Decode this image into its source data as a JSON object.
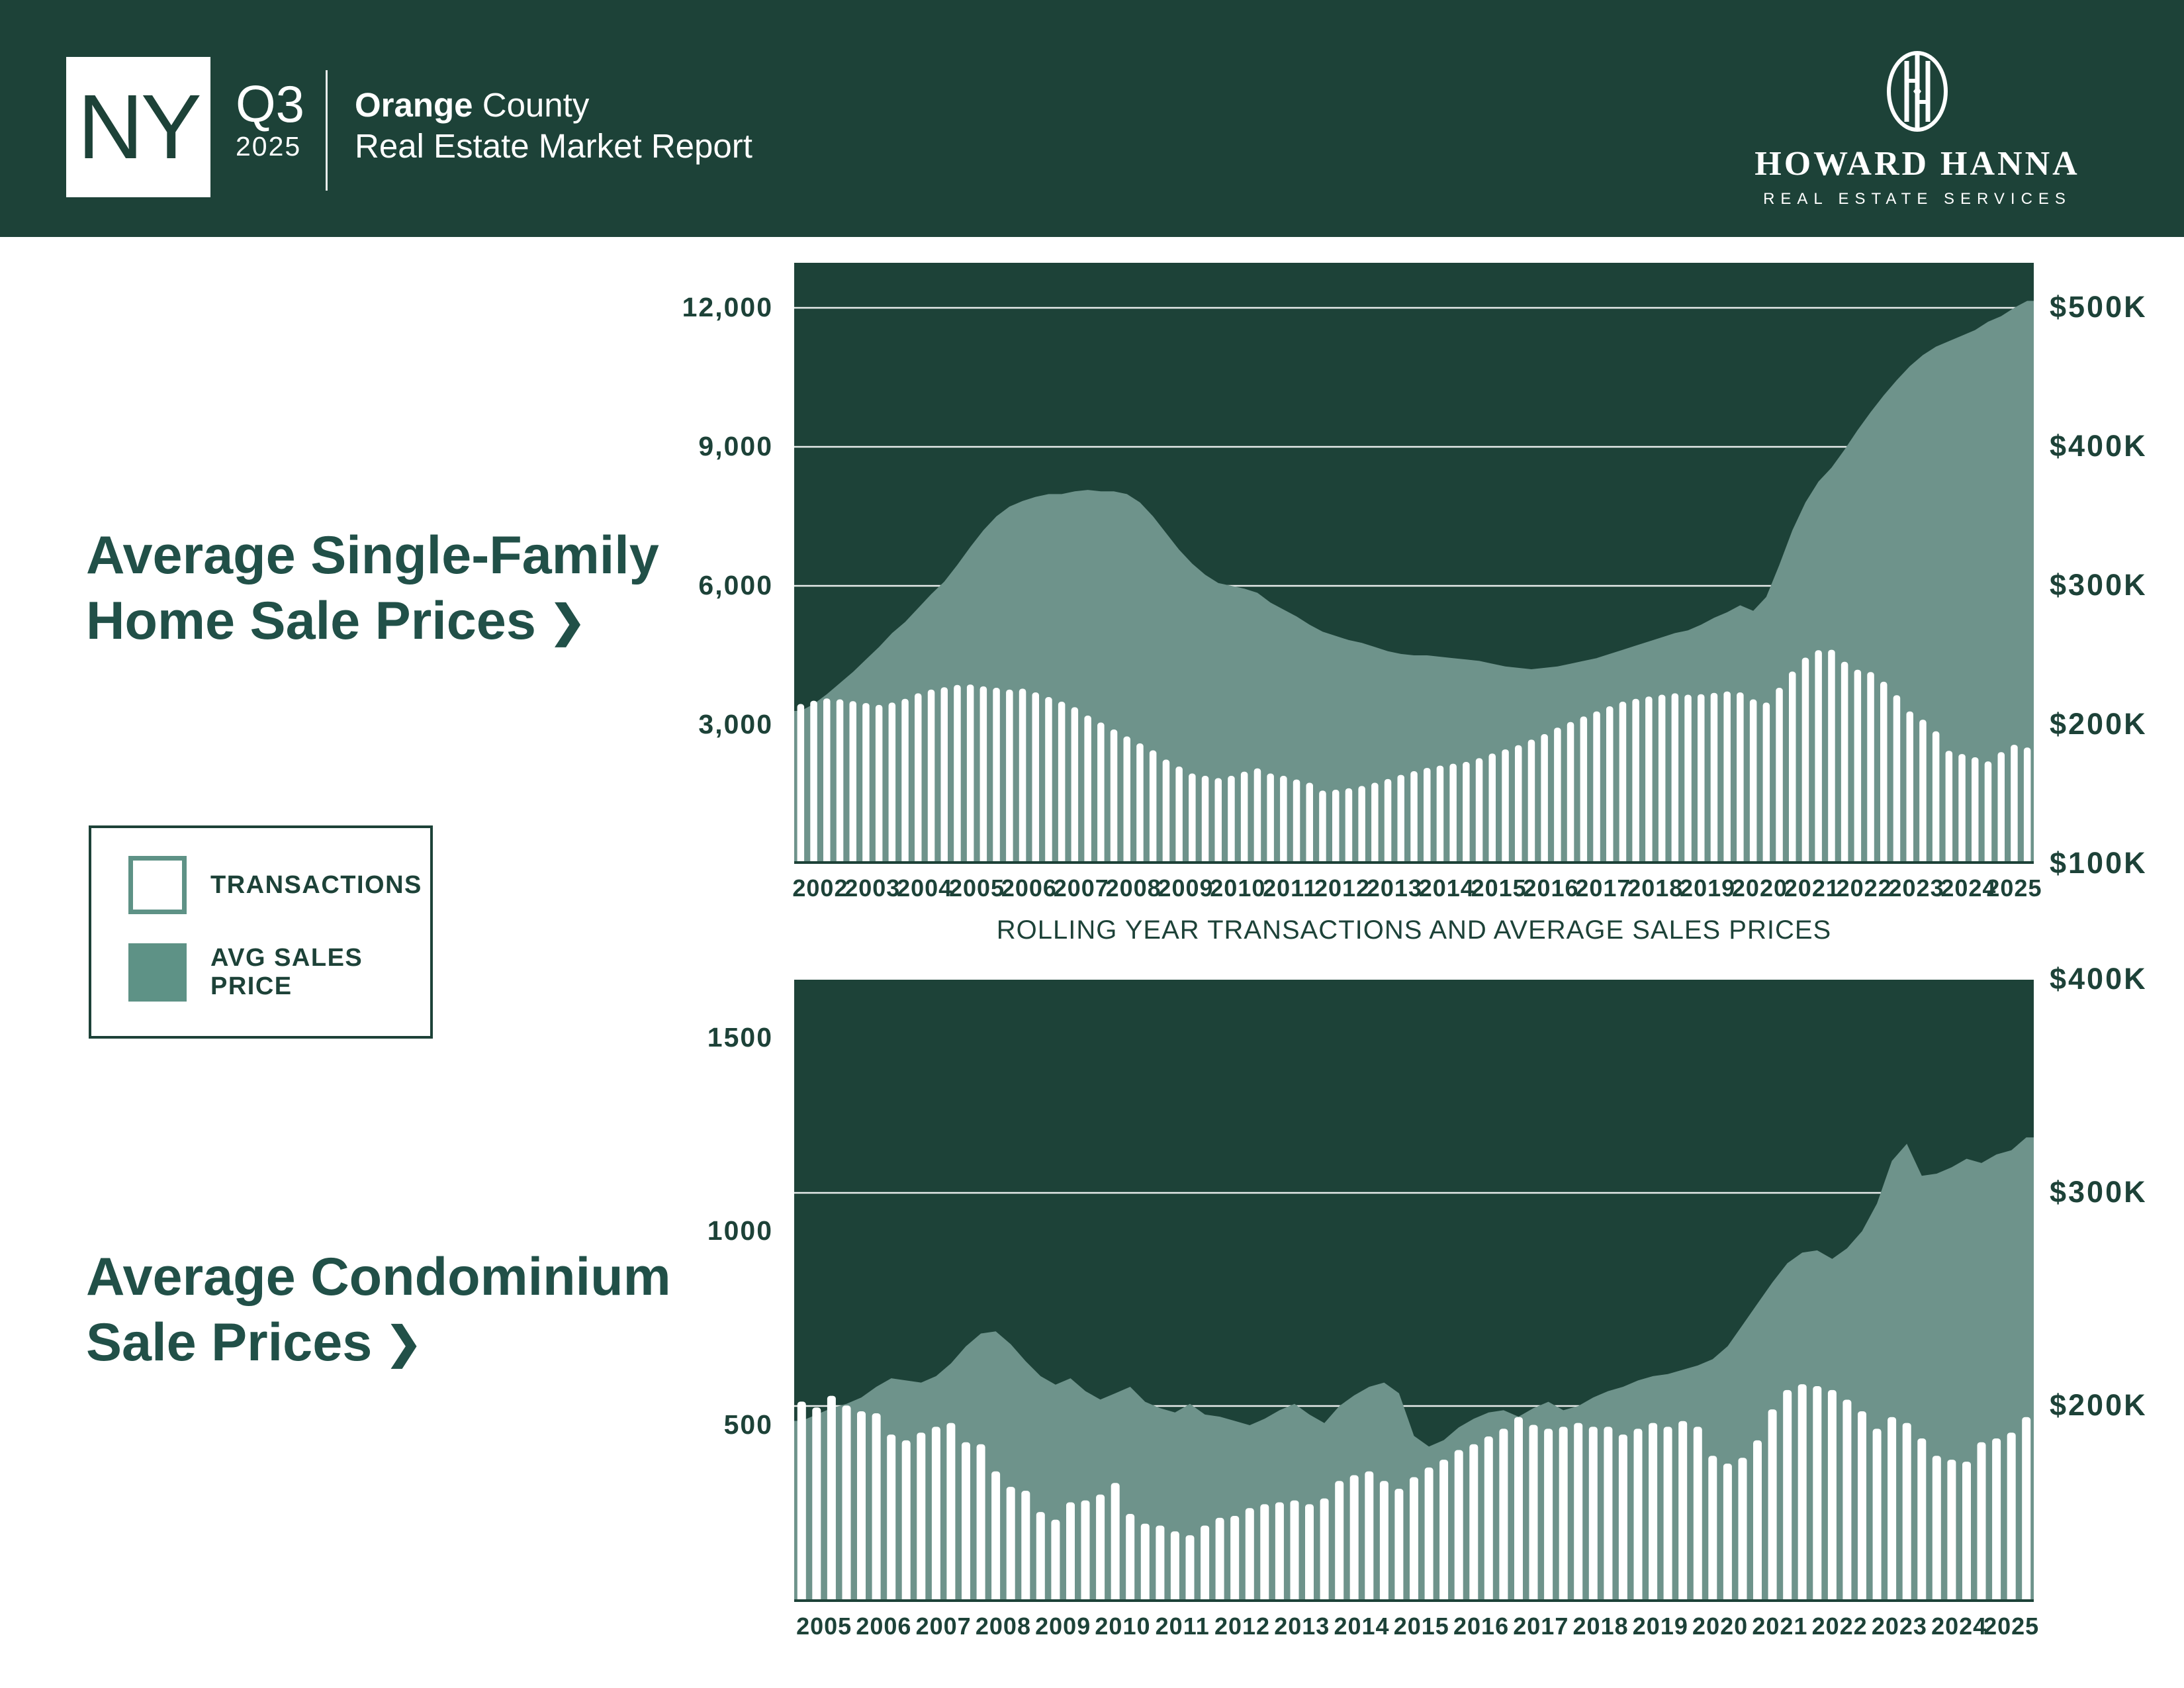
{
  "header": {
    "state": "NY",
    "quarter": "Q3",
    "year": "2025",
    "region_bold": "Orange",
    "region_rest": " County",
    "subtitle": "Real Estate Market Report",
    "logo": {
      "name": "HOWARD HANNA",
      "tagline": "REAL ESTATE SERVICES"
    }
  },
  "titles": {
    "chart1_line1": "Average Single-Family",
    "chart1_line2": "Home Sale Prices",
    "chart2_line1": "Average Condominium",
    "chart2_line2": "Sale Prices",
    "chevron": "❯"
  },
  "legend": {
    "items": [
      {
        "label": "TRANSACTIONS",
        "swatch": "outline"
      },
      {
        "label": "AVG SALES PRICE",
        "swatch": "fill"
      }
    ]
  },
  "caption": "ROLLING YEAR TRANSACTIONS AND AVERAGE SALES PRICES",
  "colors": {
    "dark_green": "#1D4238",
    "area_teal": "#6E938B",
    "legend_teal": "#5E9286",
    "text_green": "#215048",
    "bar_white": "#FFFFFF",
    "gridline": "rgba(255,255,255,0.9)"
  },
  "chart_data": [
    {
      "id": "single-family-chart",
      "type": "bar+area",
      "title": "Average Single-Family Home Sale Prices",
      "x_years": [
        "2002",
        "2003",
        "2004",
        "2005",
        "2006",
        "2007",
        "2008",
        "2009",
        "2010",
        "2011",
        "2012",
        "2013",
        "2014",
        "2015",
        "2016",
        "2017",
        "2018",
        "2019",
        "2020",
        "2021",
        "2022",
        "2023",
        "2024",
        "2025"
      ],
      "points_per_year": 4,
      "n_points": 95,
      "left_axis": {
        "label": "transactions",
        "ticks": [
          "3,000",
          "6,000",
          "9,000",
          "12,000"
        ],
        "tick_values": [
          3000,
          6000,
          9000,
          12000
        ],
        "ylim": [
          0,
          12970
        ]
      },
      "right_axis": {
        "label": "avg sales price",
        "ticks": [
          "$100K",
          "$200K",
          "$300K",
          "$400K",
          "$500K"
        ],
        "tick_values": [
          100,
          200,
          300,
          400,
          500
        ],
        "ylim": [
          100,
          532
        ]
      },
      "gridlines": {
        "axis": "left",
        "values": [
          3000,
          6000,
          9000,
          12000
        ]
      },
      "series": [
        {
          "name": "TRANSACTIONS",
          "type": "bar",
          "values": [
            3450,
            3520,
            3570,
            3550,
            3510,
            3470,
            3430,
            3480,
            3560,
            3680,
            3760,
            3810,
            3860,
            3870,
            3830,
            3800,
            3760,
            3780,
            3700,
            3600,
            3500,
            3380,
            3200,
            3050,
            2900,
            2750,
            2600,
            2450,
            2250,
            2100,
            1950,
            1900,
            1850,
            1900,
            1990,
            2060,
            1950,
            1900,
            1820,
            1750,
            1580,
            1600,
            1630,
            1680,
            1750,
            1830,
            1920,
            2000,
            2070,
            2120,
            2160,
            2200,
            2280,
            2380,
            2470,
            2560,
            2680,
            2800,
            2940,
            3060,
            3180,
            3290,
            3400,
            3500,
            3560,
            3610,
            3650,
            3680,
            3650,
            3660,
            3690,
            3720,
            3700,
            3550,
            3480,
            3800,
            4150,
            4450,
            4610,
            4620,
            4360,
            4190,
            4140,
            3930,
            3640,
            3290,
            3110,
            2860,
            2440,
            2370,
            2300,
            2210,
            2410,
            2570,
            2510
          ]
        },
        {
          "name": "AVG SALES PRICE",
          "type": "area",
          "unit": "$K",
          "values": [
            210,
            215,
            222,
            230,
            238,
            247,
            256,
            266,
            274,
            284,
            294,
            303,
            315,
            328,
            340,
            350,
            357,
            361,
            364,
            366,
            366,
            368,
            369,
            368,
            368,
            366,
            360,
            350,
            338,
            326,
            316,
            308,
            302,
            300,
            298,
            295,
            288,
            283,
            278,
            272,
            267,
            264,
            261,
            259,
            256,
            253,
            251,
            250,
            250,
            249,
            248,
            247,
            246,
            244,
            242,
            241,
            240,
            241,
            242,
            244,
            246,
            248,
            251,
            254,
            257,
            260,
            263,
            266,
            268,
            272,
            277,
            281,
            286,
            282,
            292,
            315,
            340,
            360,
            375,
            385,
            398,
            412,
            425,
            437,
            448,
            458,
            466,
            472,
            476,
            480,
            484,
            490,
            494,
            500,
            505
          ]
        }
      ]
    },
    {
      "id": "condominium-chart",
      "type": "bar+area",
      "title": "Average Condominium Sale Prices",
      "x_years": [
        "2005",
        "2006",
        "2007",
        "2008",
        "2009",
        "2010",
        "2011",
        "2012",
        "2013",
        "2014",
        "2015",
        "2016",
        "2017",
        "2018",
        "2019",
        "2020",
        "2021",
        "2022",
        "2023",
        "2024",
        "2025"
      ],
      "points_per_year": 4,
      "n_points": 83,
      "left_axis": {
        "label": "transactions",
        "ticks": [
          "500",
          "1000",
          "1500"
        ],
        "tick_values": [
          500,
          1000,
          1500
        ],
        "ylim": [
          0,
          1650
        ]
      },
      "right_axis": {
        "label": "avg sales price",
        "ticks": [
          "$200K",
          "$300K",
          "$400K"
        ],
        "tick_values": [
          200,
          300,
          400
        ],
        "ylim": [
          108,
          400
        ]
      },
      "gridlines": {
        "axis": "right",
        "values": [
          200,
          300
        ]
      },
      "series": [
        {
          "name": "TRANSACTIONS",
          "type": "bar",
          "values": [
            560,
            545,
            575,
            550,
            535,
            530,
            475,
            460,
            480,
            495,
            505,
            455,
            450,
            380,
            340,
            330,
            275,
            255,
            300,
            305,
            320,
            350,
            270,
            245,
            240,
            225,
            215,
            240,
            260,
            265,
            285,
            295,
            300,
            305,
            295,
            310,
            355,
            370,
            380,
            355,
            335,
            365,
            390,
            410,
            435,
            450,
            470,
            490,
            520,
            500,
            490,
            495,
            505,
            495,
            495,
            475,
            490,
            505,
            495,
            510,
            495,
            420,
            400,
            415,
            460,
            540,
            590,
            605,
            600,
            590,
            565,
            535,
            490,
            520,
            505,
            465,
            420,
            410,
            405,
            455,
            465,
            480,
            520
          ]
        },
        {
          "name": "AVG SALES PRICE",
          "type": "area",
          "unit": "$K",
          "values": [
            193,
            196,
            199,
            201,
            204,
            209,
            213,
            212,
            211,
            214,
            220,
            228,
            234,
            235,
            229,
            221,
            214,
            210,
            213,
            207,
            203,
            206,
            209,
            202,
            199,
            197,
            201,
            196,
            195,
            193,
            191,
            194,
            198,
            201,
            196,
            192,
            200,
            205,
            209,
            211,
            206,
            186,
            181,
            184,
            190,
            194,
            197,
            198,
            195,
            199,
            202,
            198,
            200,
            204,
            207,
            209,
            212,
            214,
            215,
            217,
            219,
            222,
            228,
            238,
            248,
            258,
            267,
            272,
            273,
            269,
            274,
            282,
            295,
            315,
            323,
            308,
            309,
            312,
            316,
            314,
            318,
            320,
            326
          ]
        }
      ]
    }
  ]
}
